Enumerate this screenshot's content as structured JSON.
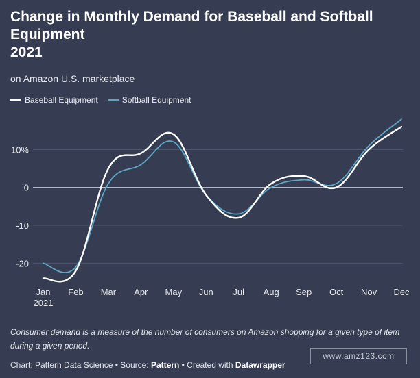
{
  "chart_data": {
    "type": "line",
    "title": "Change in Monthly Demand for Baseball and Softball Equipment 2021",
    "title_lines": [
      "Change in Monthly Demand for Baseball and Softball",
      "Equipment",
      "2021"
    ],
    "subtitle": "on Amazon U.S. marketplace",
    "categories": [
      "Jan",
      "Feb",
      "Mar",
      "Apr",
      "May",
      "Jun",
      "Jul",
      "Aug",
      "Sep",
      "Oct",
      "Nov",
      "Dec"
    ],
    "first_category_year": "2021",
    "series": [
      {
        "name": "Baseball Equipment",
        "color": "#ffffff",
        "values": [
          -24,
          -22,
          5,
          9,
          14,
          -2,
          -8,
          1,
          3,
          0,
          10,
          16
        ]
      },
      {
        "name": "Softball Equipment",
        "color": "#5ca8c4",
        "values": [
          -20,
          -21,
          1,
          6,
          12,
          -2,
          -7,
          0,
          2,
          1,
          11,
          18
        ]
      }
    ],
    "y_ticks": [
      -20,
      -10,
      0,
      10
    ],
    "y_tick_labels": [
      "-20",
      "-10",
      "0",
      "10%"
    ],
    "ylim": [
      -25,
      20
    ],
    "grid": true,
    "legend": "top-left"
  },
  "footnote": "Consumer demand is a measure of the number of consumers on Amazon shopping for a given type of item during a given period.",
  "credit": {
    "prefix": "Chart: Pattern Data Science • Source: ",
    "source": "Pattern",
    "middle": " • Created with ",
    "tool": "Datawrapper"
  },
  "watermark": "www.amz123.com",
  "colors": {
    "background": "#363d52",
    "grid": "#4f5670",
    "zero_line": "#c8ccd6"
  }
}
